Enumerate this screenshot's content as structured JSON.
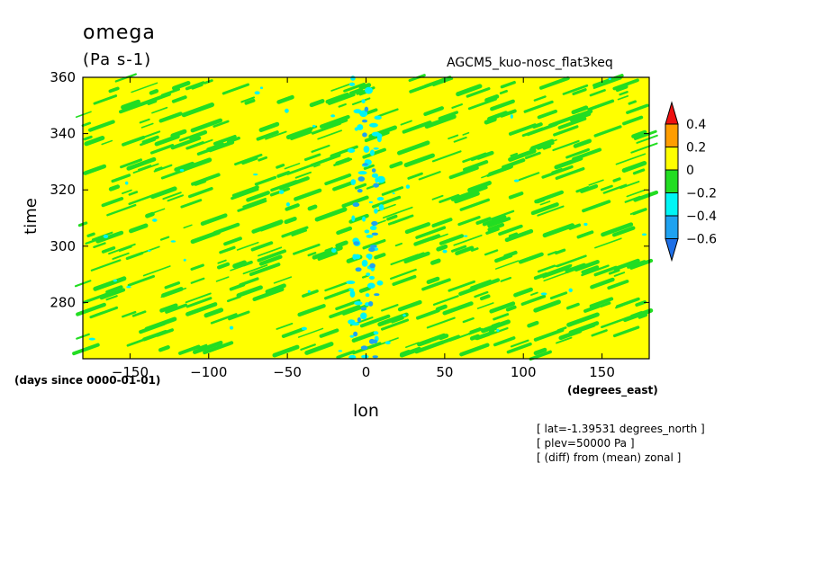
{
  "chart_data": {
    "type": "heatmap",
    "title": "omega",
    "units": "(Pa s-1)",
    "run_label": "AGCM5_kuo-nosc_flat3keq",
    "xlabel": "lon",
    "ylabel": "time",
    "x_units_label": "(degrees_east)",
    "y_units_label": "(days since 0000-01-01)",
    "xlim": [
      -180,
      180
    ],
    "ylim": [
      260,
      360
    ],
    "x_ticks": [
      -150,
      -100,
      -50,
      0,
      50,
      100,
      150
    ],
    "y_ticks": [
      280,
      300,
      320,
      340,
      360
    ],
    "colorbar": {
      "levels": [
        -0.6,
        -0.4,
        -0.2,
        0,
        0.2,
        0.4
      ],
      "labels": [
        "0.4",
        "0.2",
        "0",
        "-0.2",
        "-0.4",
        "-0.6"
      ],
      "colors": {
        "below": "#1e6fe6",
        "b_-0.6_-0.4": "#1fa2f0",
        "b_-0.4_-0.2": "#00f5f5",
        "b_-0.2_0": "#22dd22",
        "b_0_0.2": "#ffff00",
        "b_0.2_0.4": "#ff9d00",
        "above": "#ee1111"
      }
    },
    "field_description_values": {
      "background_band": "0 to 0.2",
      "dominant_negative_band": "-0.2 to 0",
      "minimum_near_lon": 0
    }
  },
  "notes": [
    "[ lat=-1.39531 degrees_north ]",
    "[ plev=50000 Pa ]",
    "[ (diff) from (mean) zonal ]"
  ]
}
